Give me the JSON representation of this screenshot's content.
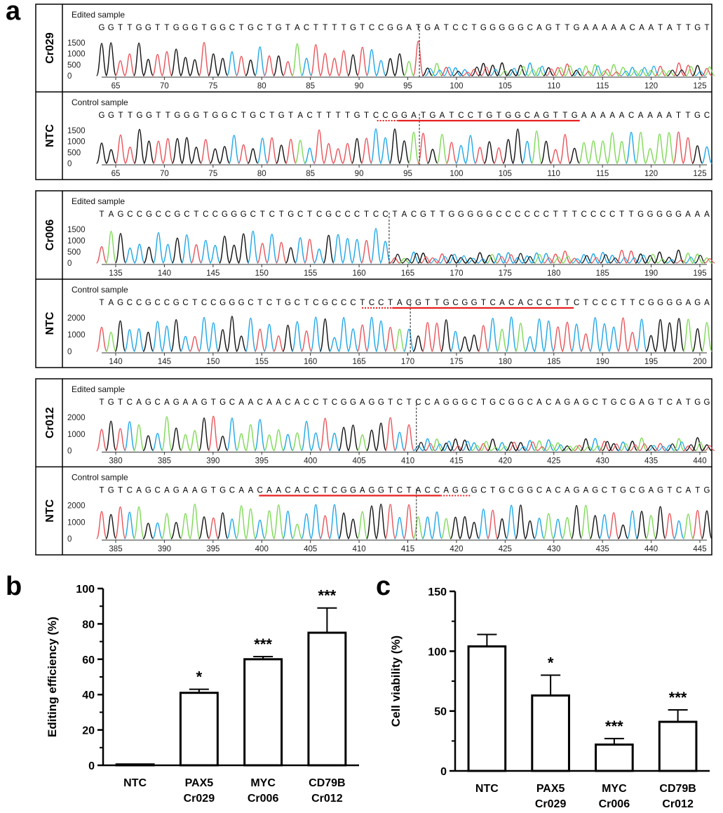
{
  "panel_a": {
    "letter": "a",
    "groups": [
      {
        "label": "Cr029",
        "edited": {
          "subtitle": "Edited sample",
          "sequence": "GGTTGGTTGGGTGGCTGCTGTACTTTTGTCCGGATGATCCTGGGGGCAGTTGAAAAACAATATTGT",
          "yticks": [
            "1500",
            "1000",
            "500",
            "0"
          ],
          "xticks": [
            "65",
            "70",
            "75",
            "80",
            "85",
            "90",
            "95",
            "100",
            "105",
            "110",
            "115",
            "120",
            "125"
          ],
          "cut_fraction": 0.525
        },
        "control_label": "NTC",
        "control": {
          "subtitle": "Control sample",
          "sequence": "GGTTGGTTGGGTGGCTGCTGTACTTTTGTCCGGATGATCCTGTGGCAGTTGAAAAACAAAATTGC",
          "yticks": [
            "1500",
            "1000",
            "500",
            "0"
          ],
          "xticks": [
            "65",
            "70",
            "75",
            "80",
            "85",
            "90",
            "95",
            "100",
            "105",
            "110",
            "115",
            "120",
            "125"
          ],
          "cut_fraction": 0.525
        }
      },
      {
        "label": "Cr006",
        "edited": {
          "subtitle": "Edited sample",
          "sequence": "TAGCCGCCGCTCCGGGCTCTGCTCGCCCTCCTACGTTGGGGGCCCCCCTTTCCCCTTGGGGGAAA",
          "yticks": [
            "1500",
            "1000",
            "500",
            "0"
          ],
          "xticks": [
            "135",
            "140",
            "145",
            "150",
            "155",
            "160",
            "165",
            "170",
            "175",
            "180",
            "185",
            "190",
            "195"
          ],
          "cut_fraction": 0.475
        },
        "control_label": "NTC",
        "control": {
          "subtitle": "Control sample",
          "sequence": "TAGCCGCCGCTCCGGGCTCTGCTCGCCCTCCTACGTTGCGGTCACACCCTTCTCCCTTCGGGGAGA",
          "yticks": [
            "2000",
            "1000",
            "0"
          ],
          "xticks": [
            "140",
            "145",
            "150",
            "155",
            "160",
            "165",
            "170",
            "175",
            "180",
            "185",
            "190",
            "195",
            "200"
          ],
          "cut_fraction": 0.51
        }
      },
      {
        "label": "Cr012",
        "edited": {
          "subtitle": "Edited sample",
          "sequence": "TGTCAGCAGAAGTGCAACAACACCTCGGAGGTCTCCAGGGCTGCGGCACAGAGCTGCGAGTCATGG",
          "yticks": [
            "2000",
            "1000",
            "0"
          ],
          "xticks": [
            "380",
            "385",
            "390",
            "395",
            "400",
            "405",
            "410",
            "415",
            "420",
            "425",
            "430",
            "435",
            "440"
          ],
          "cut_fraction": 0.52
        },
        "control_label": "NTC",
        "control": {
          "subtitle": "Control sample",
          "sequence": "TGTCAGCAGAAGTGCAACAACACCTCGGAGGTCTACCAGGGCTGCGGCACAGAGCTGCGAGTCATG",
          "yticks": [
            "2000",
            "1000",
            "0"
          ],
          "xticks": [
            "385",
            "390",
            "395",
            "400",
            "405",
            "410",
            "415",
            "420",
            "425",
            "430",
            "435",
            "440",
            "445"
          ],
          "cut_fraction": 0.52
        }
      }
    ],
    "trace_colors": {
      "A": "#7ed957",
      "C": "#1fa7e6",
      "G": "#111111",
      "T": "#e8545a"
    },
    "guide_color": "#e82020"
  },
  "chart_data": [
    {
      "panel": "b",
      "type": "bar",
      "categories": [
        "NTC",
        "PAX5\nCr029",
        "MYC\nCr006",
        "CD79B\nCr012"
      ],
      "values": [
        0.5,
        41,
        60,
        75
      ],
      "errors": [
        0,
        2,
        1.5,
        14
      ],
      "significance": [
        "",
        "*",
        "***",
        "***"
      ],
      "ylabel": "Editing efficiency (%)",
      "xlabel": "",
      "ylim": [
        0,
        100
      ],
      "yticks": [
        0,
        20,
        40,
        60,
        80,
        100
      ]
    },
    {
      "panel": "c",
      "type": "bar",
      "categories": [
        "NTC",
        "PAX5\nCr029",
        "MYC\nCr006",
        "CD79B\nCr012"
      ],
      "values": [
        104,
        63,
        22,
        41
      ],
      "errors": [
        10,
        17,
        5,
        10
      ],
      "significance": [
        "",
        "*",
        "***",
        "***"
      ],
      "ylabel": "Cell viability (%)",
      "xlabel": "",
      "ylim": [
        0,
        150
      ],
      "yticks": [
        0,
        50,
        100,
        150
      ]
    }
  ]
}
